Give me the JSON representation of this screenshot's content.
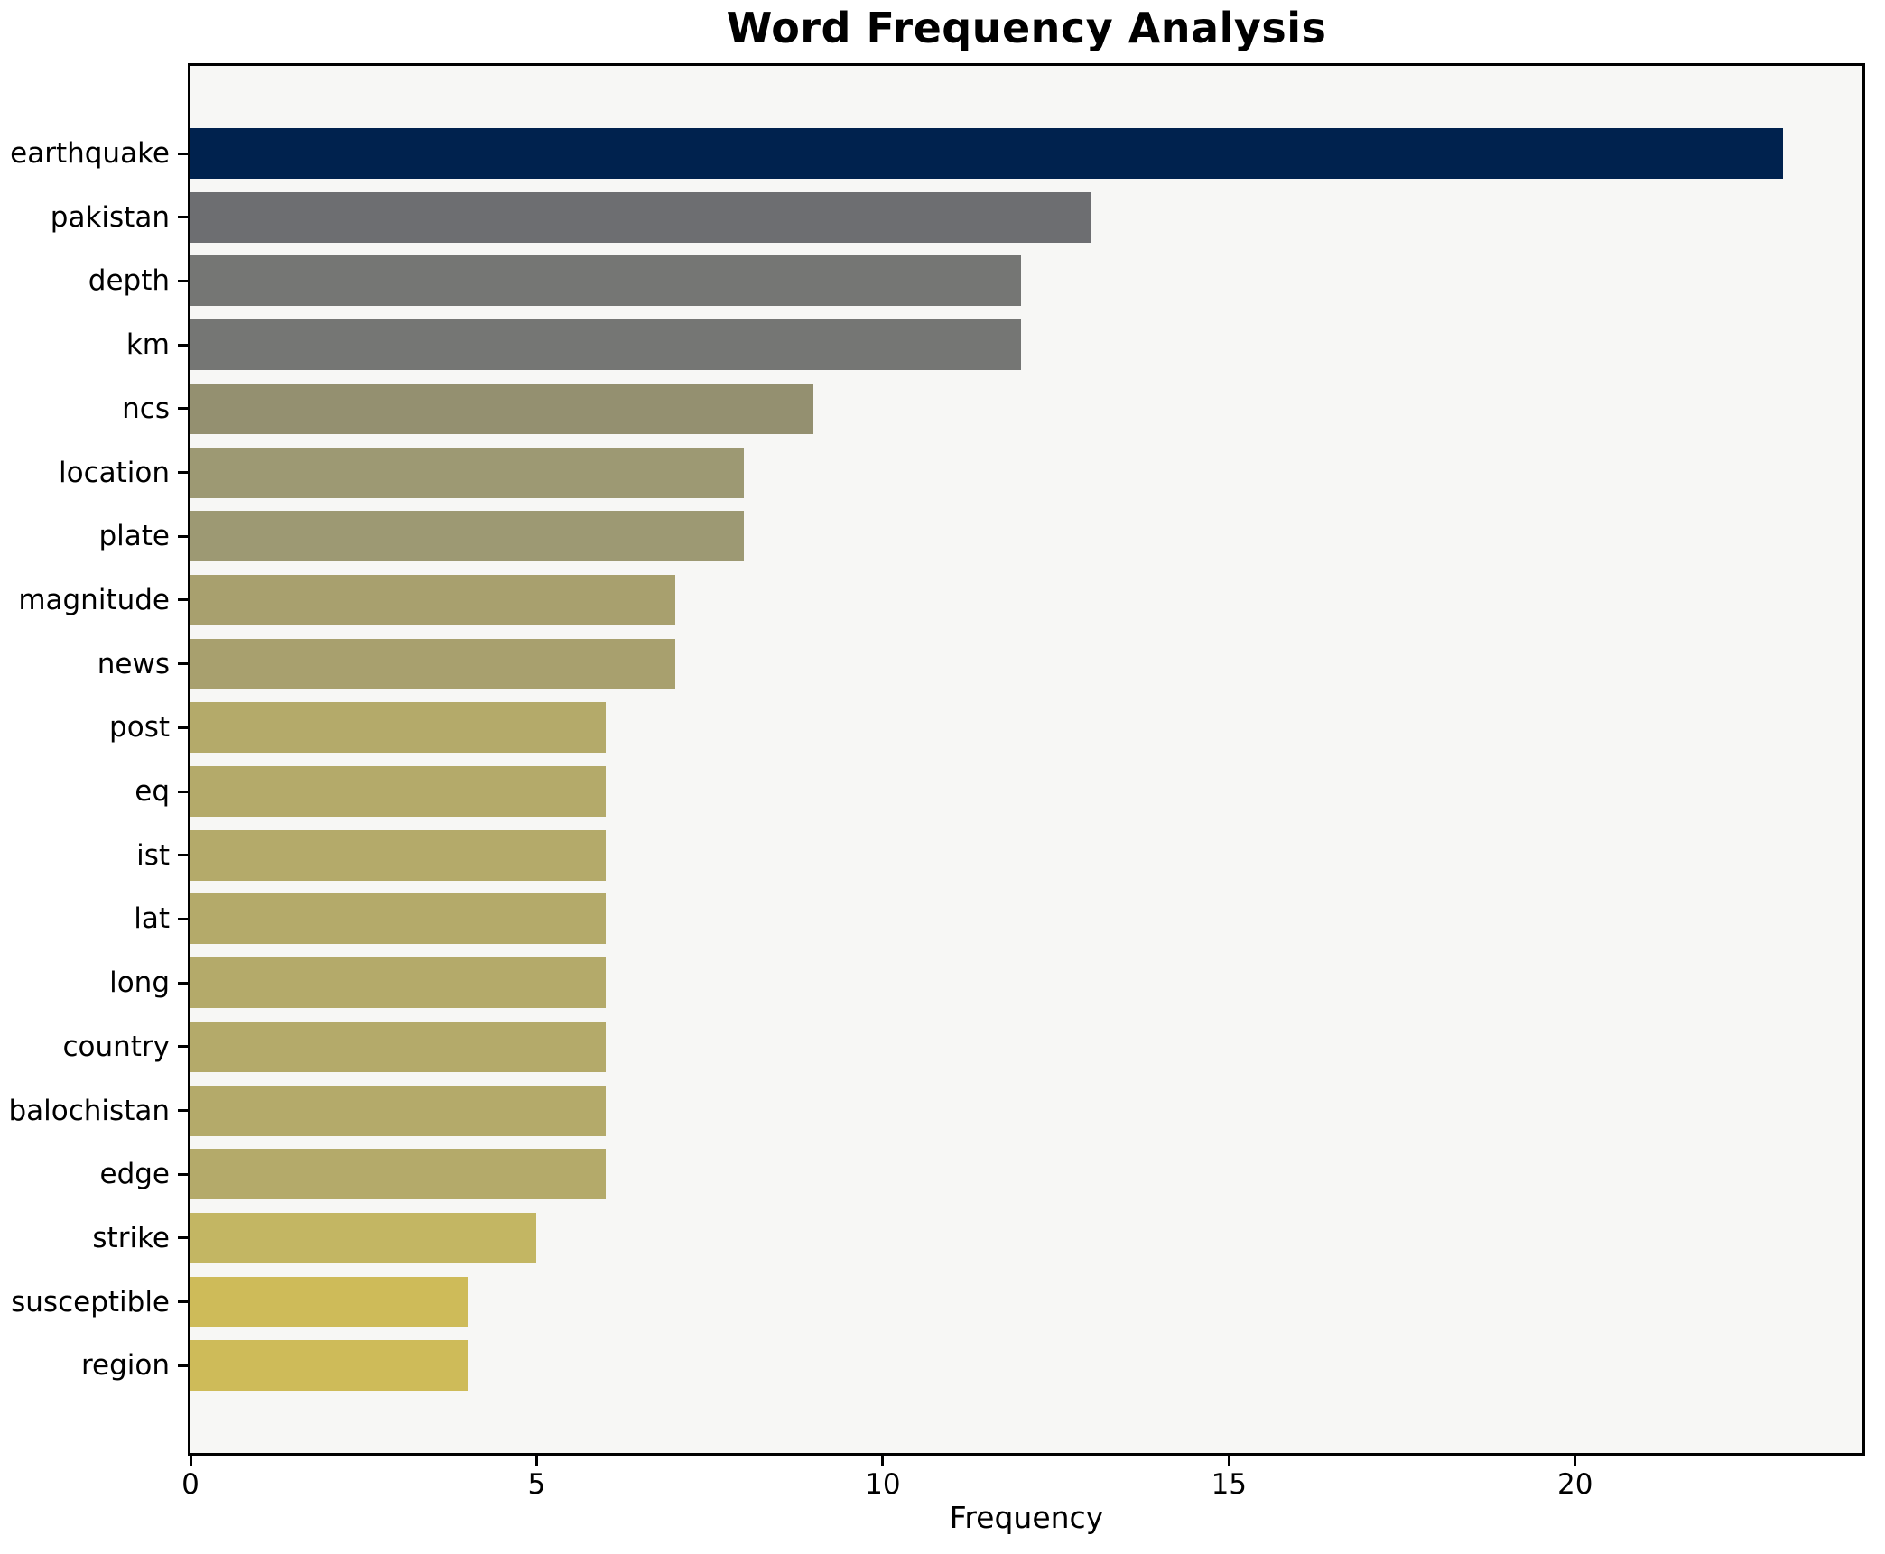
{
  "chart_data": {
    "type": "bar",
    "orientation": "horizontal",
    "title": "Word Frequency Analysis",
    "xlabel": "Frequency",
    "ylabel": "",
    "categories": [
      "earthquake",
      "pakistan",
      "depth",
      "km",
      "ncs",
      "location",
      "plate",
      "magnitude",
      "news",
      "post",
      "eq",
      "ist",
      "lat",
      "long",
      "country",
      "balochistan",
      "edge",
      "strike",
      "susceptible",
      "region"
    ],
    "values": [
      23,
      13,
      12,
      12,
      9,
      8,
      8,
      7,
      7,
      6,
      6,
      6,
      6,
      6,
      6,
      6,
      6,
      5,
      4,
      4
    ],
    "bar_colors": [
      "#00224e",
      "#6d6e71",
      "#757674",
      "#757674",
      "#949070",
      "#9d9973",
      "#9d9973",
      "#a8a06e",
      "#a8a06e",
      "#b4aa6a",
      "#b4aa6a",
      "#b4aa6a",
      "#b4aa6a",
      "#b4aa6a",
      "#b4aa6a",
      "#b4aa6a",
      "#b4aa6a",
      "#c3b663",
      "#cebb59",
      "#cebb59"
    ],
    "xticks": [
      0,
      5,
      10,
      15,
      20
    ],
    "xlim": [
      0,
      24.15
    ],
    "grid": false,
    "legend": "none",
    "color_scheme": "cividis-reversed-by-value",
    "plot_background": "#f7f7f5",
    "figure_background": "#ffffff",
    "spine_color": "#000000"
  }
}
